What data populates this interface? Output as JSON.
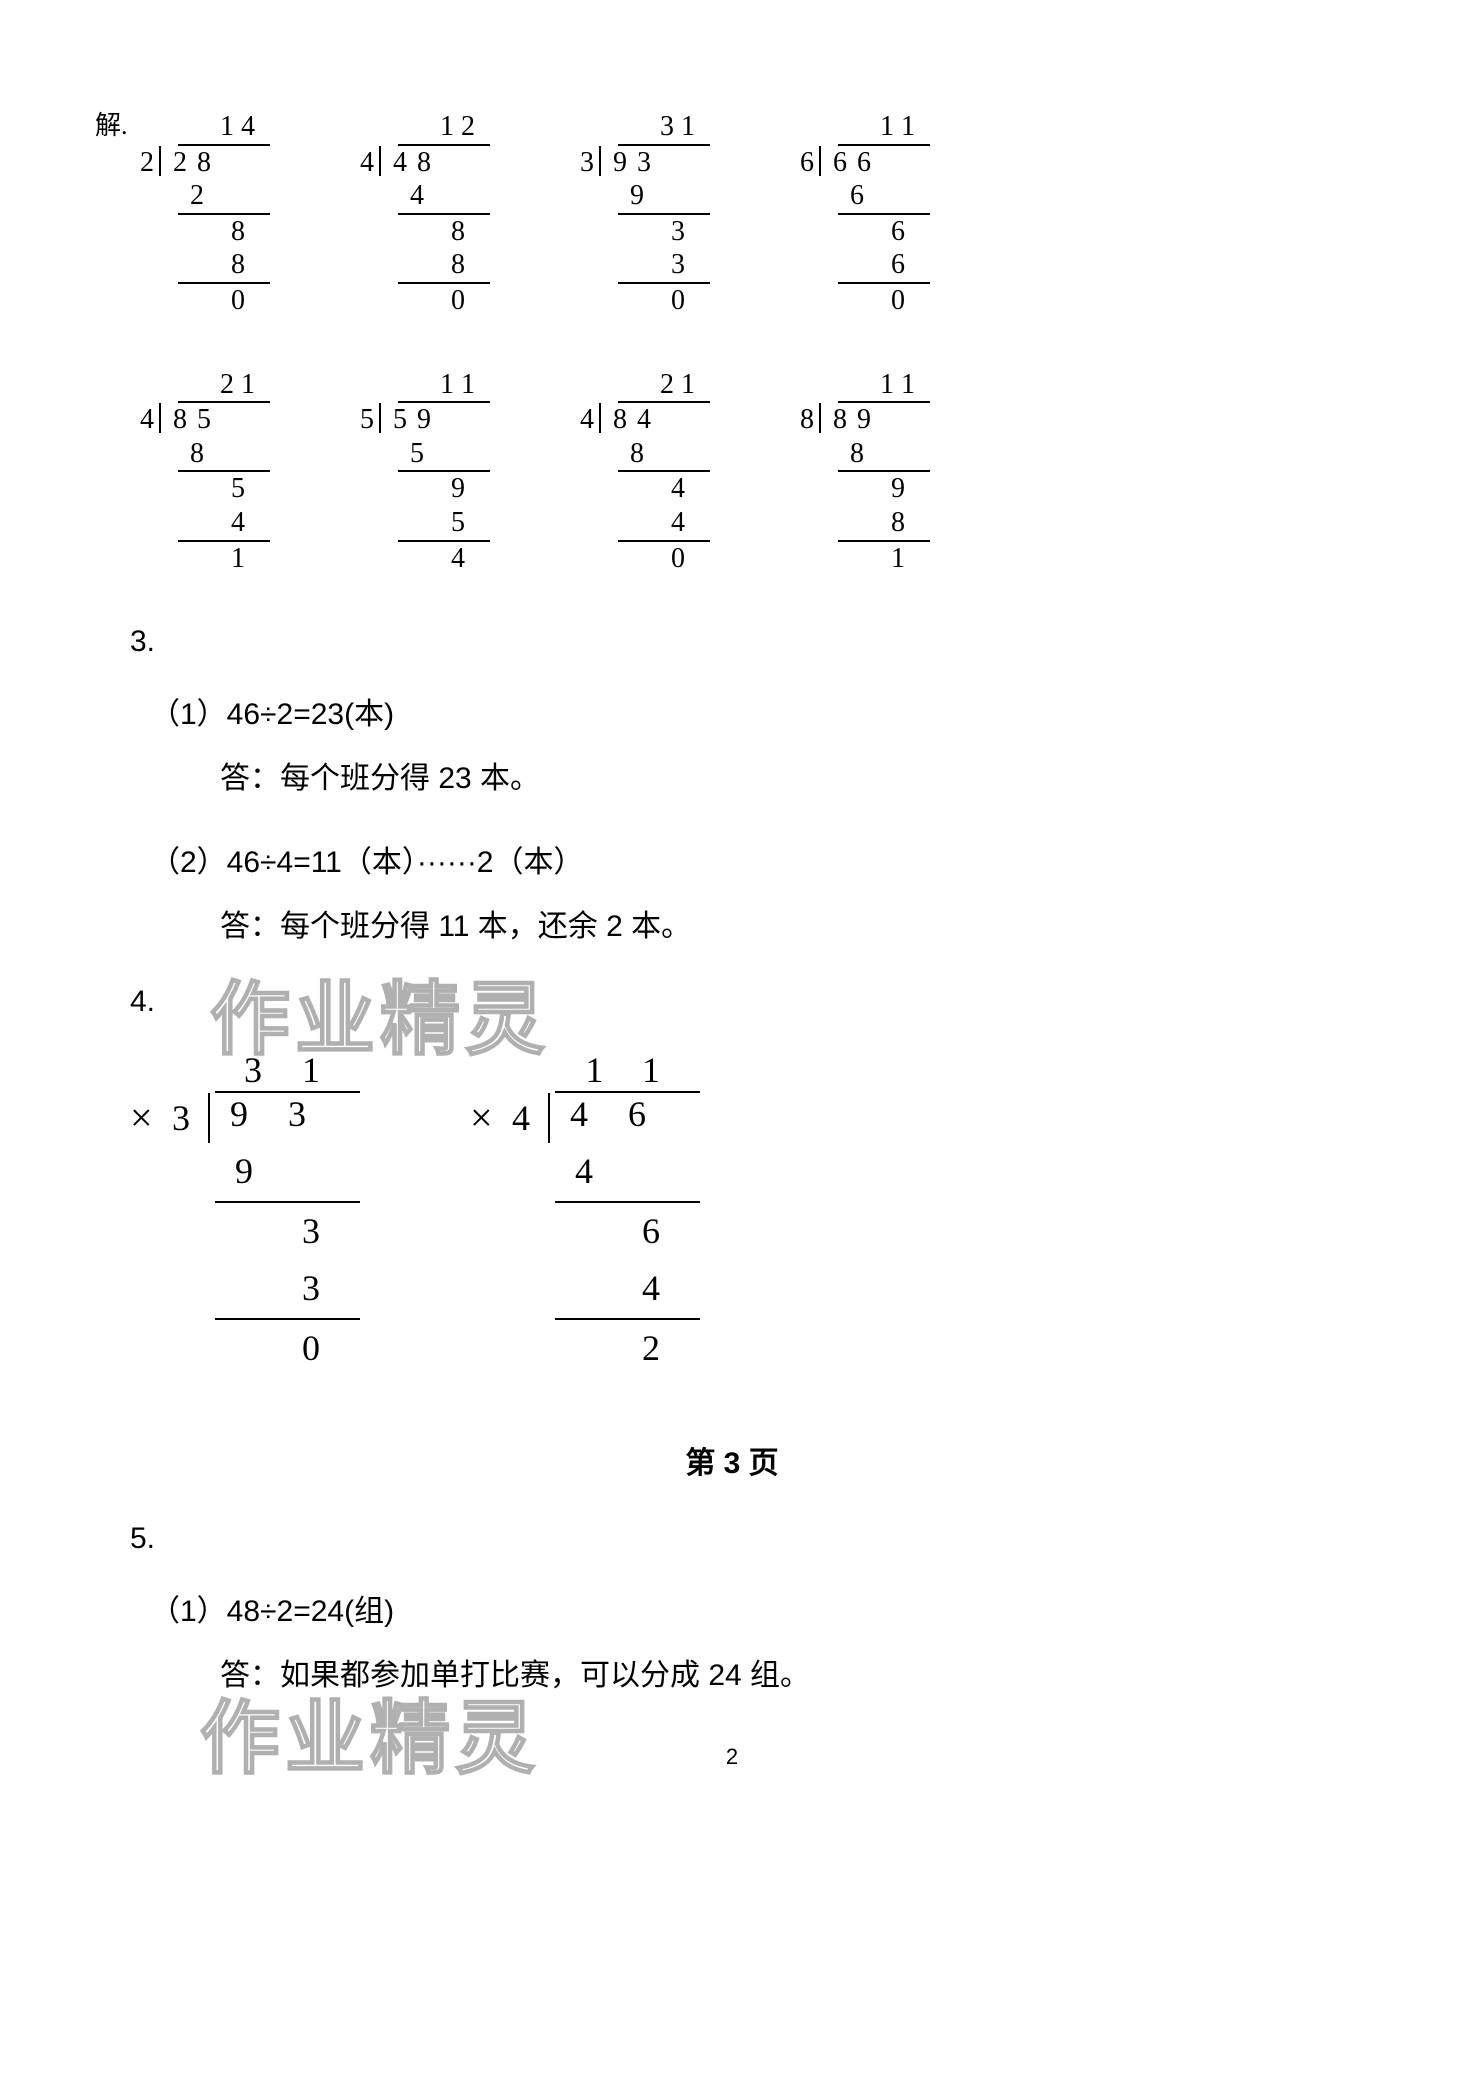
{
  "prefix": "解.",
  "divisions_row1": [
    {
      "divisor": "2",
      "dividend": "28",
      "quotient": "14",
      "steps": [
        {
          "v": "2",
          "left": true,
          "sub": true
        },
        {
          "v": "8",
          "sub": false
        },
        {
          "v": "8",
          "sub": true
        },
        {
          "v": "0",
          "sub": false
        }
      ]
    },
    {
      "divisor": "4",
      "dividend": "48",
      "quotient": "12",
      "steps": [
        {
          "v": "4",
          "left": true,
          "sub": true
        },
        {
          "v": "8",
          "sub": false
        },
        {
          "v": "8",
          "sub": true
        },
        {
          "v": "0",
          "sub": false
        }
      ]
    },
    {
      "divisor": "3",
      "dividend": "93",
      "quotient": "31",
      "steps": [
        {
          "v": "9",
          "left": true,
          "sub": true
        },
        {
          "v": "3",
          "sub": false
        },
        {
          "v": "3",
          "sub": true
        },
        {
          "v": "0",
          "sub": false
        }
      ]
    },
    {
      "divisor": "6",
      "dividend": "66",
      "quotient": "11",
      "steps": [
        {
          "v": "6",
          "left": true,
          "sub": true
        },
        {
          "v": "6",
          "sub": false
        },
        {
          "v": "6",
          "sub": true
        },
        {
          "v": "0",
          "sub": false
        }
      ]
    }
  ],
  "divisions_row2": [
    {
      "divisor": "4",
      "dividend": "85",
      "quotient": "21",
      "steps": [
        {
          "v": "8",
          "left": true,
          "sub": true
        },
        {
          "v": "5",
          "sub": false
        },
        {
          "v": "4",
          "sub": true
        },
        {
          "v": "1",
          "sub": false
        }
      ]
    },
    {
      "divisor": "5",
      "dividend": "59",
      "quotient": "11",
      "steps": [
        {
          "v": "5",
          "left": true,
          "sub": true
        },
        {
          "v": "9",
          "sub": false
        },
        {
          "v": "5",
          "sub": true
        },
        {
          "v": "4",
          "sub": false
        }
      ]
    },
    {
      "divisor": "4",
      "dividend": "84",
      "quotient": "21",
      "steps": [
        {
          "v": "8",
          "left": true,
          "sub": true
        },
        {
          "v": "4",
          "sub": false
        },
        {
          "v": "4",
          "sub": true
        },
        {
          "v": "0",
          "sub": false
        }
      ]
    },
    {
      "divisor": "8",
      "dividend": "89",
      "quotient": "11",
      "steps": [
        {
          "v": "8",
          "left": true,
          "sub": true
        },
        {
          "v": "9",
          "sub": false
        },
        {
          "v": "8",
          "sub": true
        },
        {
          "v": "1",
          "sub": false
        }
      ]
    }
  ],
  "section3": {
    "number": "3.",
    "line1": "（1）46÷2=23(本)",
    "answer1": "答：每个班分得 23 本。",
    "line2": "（2）46÷4=11（本）······2（本）",
    "answer2": "答：每个班分得 11 本，还余 2 本。"
  },
  "section4": {
    "number": "4.",
    "mark": "×",
    "long_divisions": [
      {
        "divisor": "3",
        "dividend": "93",
        "quotient": "31",
        "steps": [
          {
            "v": "9",
            "left": true,
            "sub": true
          },
          {
            "v": "3",
            "sub": false
          },
          {
            "v": "3",
            "sub": true
          },
          {
            "v": "0",
            "sub": false
          }
        ]
      },
      {
        "divisor": "4",
        "dividend": "46",
        "quotient": "11",
        "steps": [
          {
            "v": "4",
            "left": true,
            "sub": true
          },
          {
            "v": "6",
            "sub": false
          },
          {
            "v": "4",
            "sub": true
          },
          {
            "v": "2",
            "sub": false
          }
        ]
      }
    ]
  },
  "page_label": "第 3 页",
  "section5": {
    "number": "5.",
    "line1": "（1）48÷2=24(组)",
    "answer1": "答：如果都参加单打比赛，可以分成 24 组。"
  },
  "page_number": "2",
  "watermark_text": "作业精灵"
}
